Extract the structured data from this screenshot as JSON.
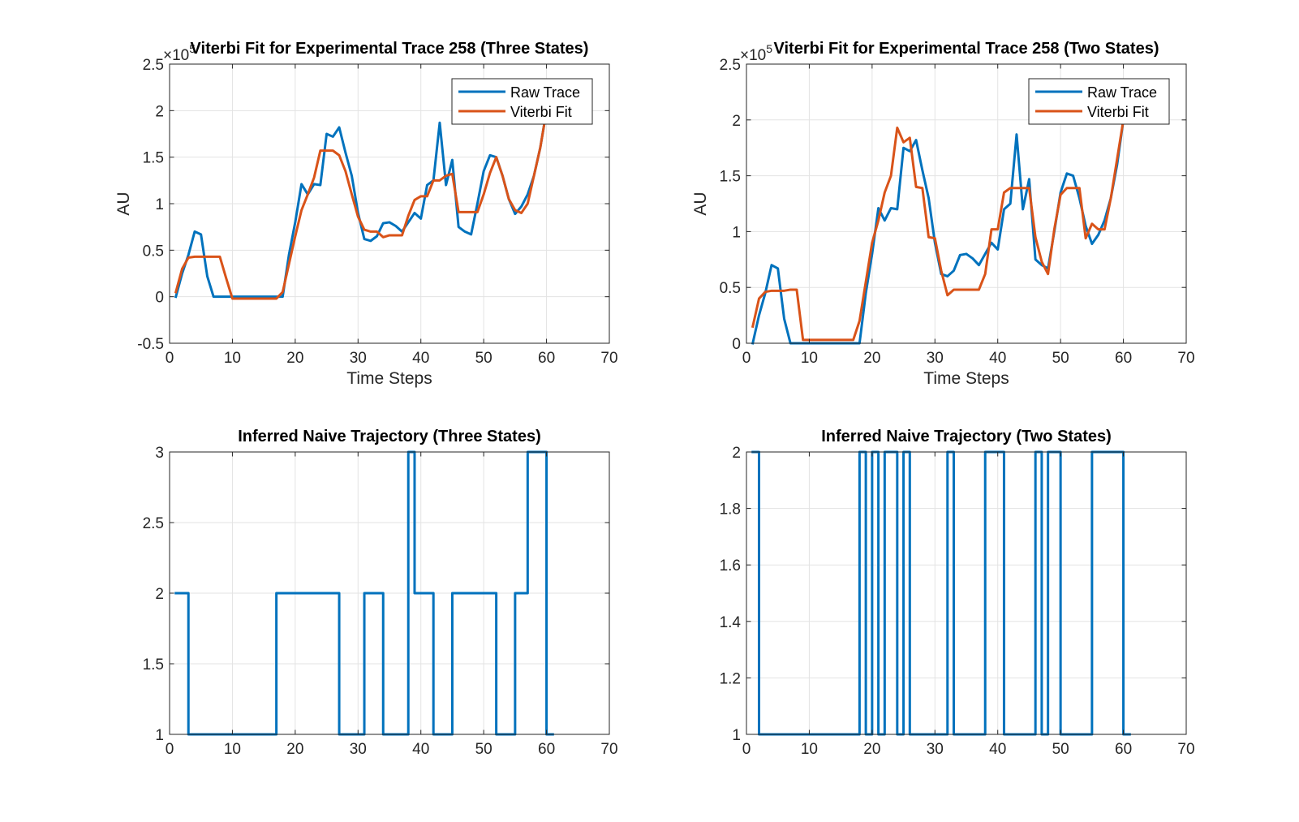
{
  "colors": {
    "raw": "#0072BD",
    "fit": "#D95319",
    "grid": "#e3e3e3",
    "axis": "#262626"
  },
  "chart_data": [
    {
      "type": "line",
      "title": "Viterbi Fit for Experimental Trace 258 (Three States)",
      "xlabel": "Time Steps",
      "ylabel": "AU",
      "exponent_label": "×10",
      "exponent_power": "5",
      "xlim": [
        0,
        70
      ],
      "ylim": [
        -0.5,
        2.5
      ],
      "xticks": [
        0,
        10,
        20,
        30,
        40,
        50,
        60,
        70
      ],
      "yticks": [
        -0.5,
        0,
        0.5,
        1,
        1.5,
        2,
        2.5
      ],
      "yticklabels": [
        "-0.5",
        "0",
        "0.5",
        "1",
        "1.5",
        "2",
        "2.5"
      ],
      "grid": true,
      "legend": "top-right",
      "x": [
        1,
        2,
        3,
        4,
        5,
        6,
        7,
        8,
        9,
        10,
        11,
        12,
        13,
        14,
        15,
        16,
        17,
        18,
        19,
        20,
        21,
        22,
        23,
        24,
        25,
        26,
        27,
        28,
        29,
        30,
        31,
        32,
        33,
        34,
        35,
        36,
        37,
        38,
        39,
        40,
        41,
        42,
        43,
        44,
        45,
        46,
        47,
        48,
        49,
        50,
        51,
        52,
        53,
        54,
        55,
        56,
        57,
        58,
        59,
        60
      ],
      "series": [
        {
          "name": "Raw Trace",
          "values": [
            0.0,
            0.25,
            0.45,
            0.7,
            0.67,
            0.22,
            0.0,
            0.0,
            0.0,
            0.0,
            0.0,
            0.0,
            0.0,
            0.0,
            0.0,
            0.0,
            0.0,
            0.0,
            0.45,
            0.8,
            1.21,
            1.1,
            1.21,
            1.2,
            1.75,
            1.72,
            1.82,
            1.55,
            1.3,
            0.9,
            0.62,
            0.6,
            0.65,
            0.79,
            0.8,
            0.76,
            0.7,
            0.8,
            0.9,
            0.84,
            1.2,
            1.25,
            1.87,
            1.2,
            1.47,
            0.75,
            0.7,
            0.67,
            1.0,
            1.35,
            1.52,
            1.5,
            1.3,
            1.05,
            0.89,
            0.97,
            1.1,
            1.3,
            1.6,
            2.0
          ]
        },
        {
          "name": "Viterbi Fit",
          "values": [
            0.05,
            0.3,
            0.42,
            0.43,
            0.43,
            0.43,
            0.43,
            0.43,
            0.2,
            -0.02,
            -0.02,
            -0.02,
            -0.02,
            -0.02,
            -0.02,
            -0.02,
            -0.02,
            0.05,
            0.35,
            0.65,
            0.93,
            1.1,
            1.28,
            1.57,
            1.57,
            1.57,
            1.52,
            1.35,
            1.1,
            0.86,
            0.72,
            0.7,
            0.7,
            0.64,
            0.66,
            0.66,
            0.66,
            0.87,
            1.04,
            1.08,
            1.08,
            1.25,
            1.25,
            1.3,
            1.32,
            0.91,
            0.91,
            0.91,
            0.91,
            1.1,
            1.33,
            1.5,
            1.3,
            1.05,
            0.93,
            0.9,
            1.0,
            1.3,
            1.6,
            2.0
          ]
        }
      ]
    },
    {
      "type": "line",
      "title": "Viterbi Fit for Experimental Trace  258 (Two States)",
      "xlabel": "Time Steps",
      "ylabel": "AU",
      "exponent_label": "×10",
      "exponent_power": "5",
      "xlim": [
        0,
        70
      ],
      "ylim": [
        0,
        2.5
      ],
      "xticks": [
        0,
        10,
        20,
        30,
        40,
        50,
        60,
        70
      ],
      "yticks": [
        0,
        0.5,
        1,
        1.5,
        2,
        2.5
      ],
      "yticklabels": [
        "0",
        "0.5",
        "1",
        "1.5",
        "2",
        "2.5"
      ],
      "grid": true,
      "legend": "top-right",
      "x": [
        1,
        2,
        3,
        4,
        5,
        6,
        7,
        8,
        9,
        10,
        11,
        12,
        13,
        14,
        15,
        16,
        17,
        18,
        19,
        20,
        21,
        22,
        23,
        24,
        25,
        26,
        27,
        28,
        29,
        30,
        31,
        32,
        33,
        34,
        35,
        36,
        37,
        38,
        39,
        40,
        41,
        42,
        43,
        44,
        45,
        46,
        47,
        48,
        49,
        50,
        51,
        52,
        53,
        54,
        55,
        56,
        57,
        58,
        59,
        60
      ],
      "series": [
        {
          "name": "Raw Trace",
          "values": [
            0.0,
            0.25,
            0.45,
            0.7,
            0.67,
            0.22,
            0.0,
            0.0,
            0.0,
            0.0,
            0.0,
            0.0,
            0.0,
            0.0,
            0.0,
            0.0,
            0.0,
            0.0,
            0.45,
            0.8,
            1.21,
            1.1,
            1.21,
            1.2,
            1.75,
            1.72,
            1.82,
            1.55,
            1.3,
            0.9,
            0.62,
            0.6,
            0.65,
            0.79,
            0.8,
            0.76,
            0.7,
            0.8,
            0.9,
            0.84,
            1.2,
            1.25,
            1.87,
            1.2,
            1.47,
            0.75,
            0.7,
            0.67,
            1.0,
            1.35,
            1.52,
            1.5,
            1.3,
            1.05,
            0.89,
            0.97,
            1.1,
            1.3,
            1.6,
            2.0
          ]
        },
        {
          "name": "Viterbi Fit",
          "values": [
            0.15,
            0.4,
            0.46,
            0.47,
            0.47,
            0.47,
            0.48,
            0.48,
            0.03,
            0.03,
            0.03,
            0.03,
            0.03,
            0.03,
            0.03,
            0.03,
            0.03,
            0.2,
            0.55,
            0.9,
            1.1,
            1.35,
            1.5,
            1.93,
            1.8,
            1.84,
            1.4,
            1.39,
            0.95,
            0.94,
            0.65,
            0.43,
            0.48,
            0.48,
            0.48,
            0.48,
            0.48,
            0.62,
            1.02,
            1.02,
            1.35,
            1.39,
            1.39,
            1.39,
            1.39,
            0.95,
            0.73,
            0.62,
            1.02,
            1.33,
            1.39,
            1.39,
            1.39,
            0.94,
            1.07,
            1.02,
            1.02,
            1.3,
            1.65,
            2.0
          ]
        }
      ]
    },
    {
      "type": "line",
      "title": "Inferred Naive Trajectory (Three States)",
      "xlabel": "",
      "ylabel": "",
      "xlim": [
        0,
        70
      ],
      "ylim": [
        1,
        3
      ],
      "xticks": [
        0,
        10,
        20,
        30,
        40,
        50,
        60,
        70
      ],
      "yticks": [
        1,
        1.5,
        2,
        2.5,
        3
      ],
      "yticklabels": [
        "1",
        "1.5",
        "2",
        "2.5",
        "3"
      ],
      "grid": true,
      "step": true,
      "series": [
        {
          "name": "",
          "points": [
            [
              1,
              2
            ],
            [
              3,
              2
            ],
            [
              3,
              1
            ],
            [
              17,
              1
            ],
            [
              17,
              2
            ],
            [
              27,
              2
            ],
            [
              27,
              1
            ],
            [
              31,
              1
            ],
            [
              31,
              2
            ],
            [
              34,
              2
            ],
            [
              34,
              1
            ],
            [
              38,
              1
            ],
            [
              38,
              3
            ],
            [
              39,
              3
            ],
            [
              39,
              2
            ],
            [
              42,
              2
            ],
            [
              42,
              1
            ],
            [
              45,
              1
            ],
            [
              45,
              2
            ],
            [
              52,
              2
            ],
            [
              52,
              1
            ],
            [
              55,
              1
            ],
            [
              55,
              2
            ],
            [
              57,
              2
            ],
            [
              57,
              3
            ],
            [
              60,
              3
            ],
            [
              60,
              1
            ],
            [
              61,
              1
            ]
          ]
        }
      ]
    },
    {
      "type": "line",
      "title": "Inferred Naive Trajectory (Two States)",
      "xlabel": "",
      "ylabel": "",
      "xlim": [
        0,
        70
      ],
      "ylim": [
        1,
        2
      ],
      "xticks": [
        0,
        10,
        20,
        30,
        40,
        50,
        60,
        70
      ],
      "yticks": [
        1,
        1.2,
        1.4,
        1.6,
        1.8,
        2
      ],
      "yticklabels": [
        "1",
        "1.2",
        "1.4",
        "1.6",
        "1.8",
        "2"
      ],
      "grid": true,
      "step": true,
      "series": [
        {
          "name": "",
          "points": [
            [
              1,
              2
            ],
            [
              2,
              2
            ],
            [
              2,
              1
            ],
            [
              18,
              1
            ],
            [
              18,
              2
            ],
            [
              19,
              2
            ],
            [
              19,
              1
            ],
            [
              20,
              1
            ],
            [
              20,
              2
            ],
            [
              21,
              2
            ],
            [
              21,
              1
            ],
            [
              22,
              1
            ],
            [
              22,
              2
            ],
            [
              24,
              2
            ],
            [
              24,
              1
            ],
            [
              25,
              1
            ],
            [
              25,
              2
            ],
            [
              26,
              2
            ],
            [
              26,
              1
            ],
            [
              32,
              1
            ],
            [
              32,
              2
            ],
            [
              33,
              2
            ],
            [
              33,
              1
            ],
            [
              38,
              1
            ],
            [
              38,
              2
            ],
            [
              41,
              2
            ],
            [
              41,
              1
            ],
            [
              46,
              1
            ],
            [
              46,
              2
            ],
            [
              47,
              2
            ],
            [
              47,
              1
            ],
            [
              48,
              1
            ],
            [
              48,
              2
            ],
            [
              50,
              2
            ],
            [
              50,
              1
            ],
            [
              55,
              1
            ],
            [
              55,
              2
            ],
            [
              60,
              2
            ],
            [
              60,
              1
            ],
            [
              61,
              1
            ]
          ]
        }
      ]
    }
  ]
}
